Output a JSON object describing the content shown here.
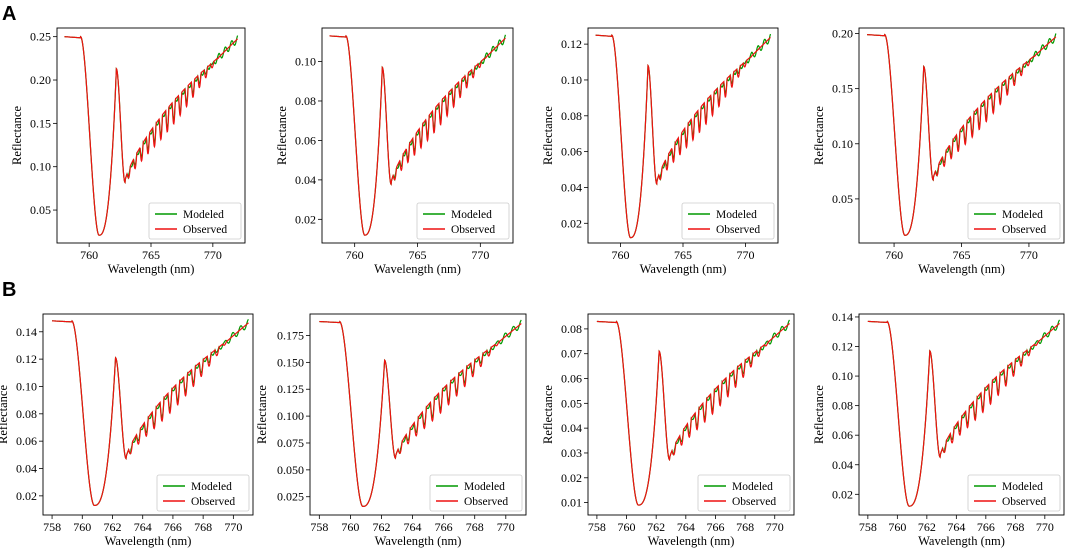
{
  "figure": {
    "panel_labels": [
      "A",
      "B"
    ]
  },
  "colors": {
    "modeled": "#009900",
    "observed": "#ee1111",
    "axis": "#000000",
    "legend_border": "#cccccc"
  },
  "chart_data": [
    {
      "type": "line",
      "panel": "A",
      "xlabel": "Wavelength (nm)",
      "ylabel": "Reflectance",
      "xlim": [
        757.4,
        772.6
      ],
      "ylim": [
        0.012,
        0.26
      ],
      "xticks": [
        760,
        765,
        770
      ],
      "xtick_labels": [
        "760",
        "765",
        "770"
      ],
      "yticks": [
        0.05,
        0.1,
        0.15,
        0.2,
        0.25
      ],
      "ytick_labels": [
        "0.05",
        "0.10",
        "0.15",
        "0.20",
        "0.25"
      ],
      "x_start": 758.0,
      "x_end": 772.0,
      "base": 0.25,
      "min_value": 0.021,
      "peak_value": 0.213,
      "trough_value": 0.078,
      "legend": [
        "Modeled",
        "Observed"
      ]
    },
    {
      "type": "line",
      "panel": "A",
      "xlabel": "Wavelength (nm)",
      "ylabel": "Reflectance",
      "xlim": [
        757.4,
        772.6
      ],
      "ylim": [
        0.008,
        0.117
      ],
      "xticks": [
        760,
        765,
        770
      ],
      "xtick_labels": [
        "760",
        "765",
        "770"
      ],
      "yticks": [
        0.02,
        0.04,
        0.06,
        0.08,
        0.1
      ],
      "ytick_labels": [
        "0.02",
        "0.04",
        "0.06",
        "0.08",
        "0.10"
      ],
      "x_start": 758.0,
      "x_end": 772.0,
      "base": 0.113,
      "min_value": 0.012,
      "peak_value": 0.097,
      "trough_value": 0.036,
      "legend": [
        "Modeled",
        "Observed"
      ]
    },
    {
      "type": "line",
      "panel": "A",
      "xlabel": "Wavelength (nm)",
      "ylabel": "Reflectance",
      "xlim": [
        757.4,
        772.6
      ],
      "ylim": [
        0.009,
        0.129
      ],
      "xticks": [
        760,
        765,
        770
      ],
      "xtick_labels": [
        "760",
        "765",
        "770"
      ],
      "yticks": [
        0.02,
        0.04,
        0.06,
        0.08,
        0.1,
        0.12
      ],
      "ytick_labels": [
        "0.02",
        "0.04",
        "0.06",
        "0.08",
        "0.10",
        "0.12"
      ],
      "x_start": 758.0,
      "x_end": 772.0,
      "base": 0.125,
      "min_value": 0.012,
      "peak_value": 0.108,
      "trough_value": 0.04,
      "legend": [
        "Modeled",
        "Observed"
      ]
    },
    {
      "type": "line",
      "panel": "A",
      "xlabel": "Wavelength (nm)",
      "ylabel": "Reflectance",
      "xlim": [
        757.4,
        772.6
      ],
      "ylim": [
        0.01,
        0.205
      ],
      "xticks": [
        760,
        765,
        770
      ],
      "xtick_labels": [
        "760",
        "765",
        "770"
      ],
      "yticks": [
        0.05,
        0.1,
        0.15,
        0.2
      ],
      "ytick_labels": [
        "0.05",
        "0.10",
        "0.15",
        "0.20"
      ],
      "x_start": 758.0,
      "x_end": 772.0,
      "base": 0.199,
      "min_value": 0.017,
      "peak_value": 0.17,
      "trough_value": 0.064,
      "legend": [
        "Modeled",
        "Observed"
      ]
    },
    {
      "type": "line",
      "panel": "B",
      "xlabel": "Wavelength (nm)",
      "ylabel": "Reflectance",
      "xlim": [
        757.4,
        771.3
      ],
      "ylim": [
        0.006,
        0.153
      ],
      "xticks": [
        758,
        760,
        762,
        764,
        766,
        768,
        770
      ],
      "xtick_labels": [
        "758",
        "760",
        "762",
        "764",
        "766",
        "768",
        "770"
      ],
      "yticks": [
        0.02,
        0.04,
        0.06,
        0.08,
        0.1,
        0.12,
        0.14
      ],
      "ytick_labels": [
        "0.02",
        "0.04",
        "0.06",
        "0.08",
        "0.10",
        "0.12",
        "0.14"
      ],
      "x_start": 758.0,
      "x_end": 771.0,
      "base": 0.148,
      "min_value": 0.013,
      "peak_value": 0.121,
      "trough_value": 0.045,
      "legend": [
        "Modeled",
        "Observed"
      ]
    },
    {
      "type": "line",
      "panel": "B",
      "xlabel": "Wavelength (nm)",
      "ylabel": "Reflectance",
      "xlim": [
        757.4,
        771.3
      ],
      "ylim": [
        0.008,
        0.195
      ],
      "xticks": [
        758,
        760,
        762,
        764,
        766,
        768,
        770
      ],
      "xtick_labels": [
        "758",
        "760",
        "762",
        "764",
        "766",
        "768",
        "770"
      ],
      "yticks": [
        0.025,
        0.05,
        0.075,
        0.1,
        0.125,
        0.15,
        0.175
      ],
      "ytick_labels": [
        "0.025",
        "0.050",
        "0.075",
        "0.100",
        "0.125",
        "0.150",
        "0.175"
      ],
      "x_start": 758.0,
      "x_end": 771.0,
      "base": 0.188,
      "min_value": 0.016,
      "peak_value": 0.152,
      "trough_value": 0.058,
      "legend": [
        "Modeled",
        "Observed"
      ]
    },
    {
      "type": "line",
      "panel": "B",
      "xlabel": "Wavelength (nm)",
      "ylabel": "Reflectance",
      "xlim": [
        757.4,
        771.3
      ],
      "ylim": [
        0.005,
        0.086
      ],
      "xticks": [
        758,
        760,
        762,
        764,
        766,
        768,
        770
      ],
      "xtick_labels": [
        "758",
        "760",
        "762",
        "764",
        "766",
        "768",
        "770"
      ],
      "yticks": [
        0.01,
        0.02,
        0.03,
        0.04,
        0.05,
        0.06,
        0.07,
        0.08
      ],
      "ytick_labels": [
        "0.01",
        "0.02",
        "0.03",
        "0.04",
        "0.05",
        "0.06",
        "0.07",
        "0.08"
      ],
      "x_start": 758.0,
      "x_end": 771.0,
      "base": 0.083,
      "min_value": 0.009,
      "peak_value": 0.071,
      "trough_value": 0.026,
      "legend": [
        "Modeled",
        "Observed"
      ]
    },
    {
      "type": "line",
      "panel": "B",
      "xlabel": "Wavelength (nm)",
      "ylabel": "Reflectance",
      "xlim": [
        757.4,
        771.3
      ],
      "ylim": [
        0.006,
        0.142
      ],
      "xticks": [
        758,
        760,
        762,
        764,
        766,
        768,
        770
      ],
      "xtick_labels": [
        "758",
        "760",
        "762",
        "764",
        "766",
        "768",
        "770"
      ],
      "yticks": [
        0.02,
        0.04,
        0.06,
        0.08,
        0.1,
        0.12,
        0.14
      ],
      "ytick_labels": [
        "0.02",
        "0.04",
        "0.06",
        "0.08",
        "0.10",
        "0.12",
        "0.14"
      ],
      "x_start": 758.0,
      "x_end": 771.0,
      "base": 0.137,
      "min_value": 0.012,
      "peak_value": 0.117,
      "trough_value": 0.043,
      "legend": [
        "Modeled",
        "Observed"
      ]
    }
  ]
}
